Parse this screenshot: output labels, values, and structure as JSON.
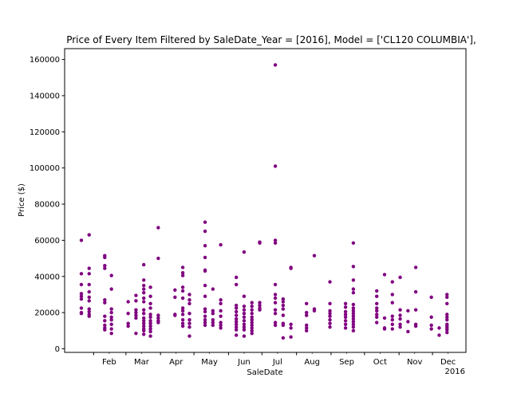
{
  "chart_data": {
    "type": "scatter",
    "title": "Price of Every Item Filtered by SaleDate_Year = [2016], Model = ['CL120 COLUMBIA'],",
    "xlabel": "SaleDate",
    "ylabel": "Price ($)",
    "x_tick_labels": [
      "Feb",
      "Mar",
      "Apr",
      "May",
      "Jun",
      "Jul",
      "Aug",
      "Sep",
      "Oct",
      "Nov",
      "Dec"
    ],
    "x_offset_label": "2016",
    "x_range": [
      "2016-01-06",
      "2016-12-31"
    ],
    "y_range": [
      -2000,
      166000
    ],
    "y_ticks": [
      0,
      20000,
      40000,
      60000,
      80000,
      100000,
      120000,
      140000,
      160000
    ],
    "y_tick_labels": [
      "0",
      "20000",
      "40000",
      "60000",
      "80000",
      "100000",
      "120000",
      "140000",
      "160000"
    ],
    "marker_color": "#800080",
    "grid": false,
    "points": [
      {
        "x": "2016-01-21",
        "y": 60000
      },
      {
        "x": "2016-01-21",
        "y": 41500
      },
      {
        "x": "2016-01-21",
        "y": 35500
      },
      {
        "x": "2016-01-21",
        "y": 30500
      },
      {
        "x": "2016-01-21",
        "y": 29000
      },
      {
        "x": "2016-01-21",
        "y": 27500
      },
      {
        "x": "2016-01-21",
        "y": 22500
      },
      {
        "x": "2016-01-21",
        "y": 20000
      },
      {
        "x": "2016-01-21",
        "y": 19500
      },
      {
        "x": "2016-01-28",
        "y": 63000
      },
      {
        "x": "2016-01-28",
        "y": 44500
      },
      {
        "x": "2016-01-28",
        "y": 41500
      },
      {
        "x": "2016-01-28",
        "y": 35500
      },
      {
        "x": "2016-01-28",
        "y": 31500
      },
      {
        "x": "2016-01-28",
        "y": 28500
      },
      {
        "x": "2016-01-28",
        "y": 26500
      },
      {
        "x": "2016-01-28",
        "y": 22000
      },
      {
        "x": "2016-01-28",
        "y": 20500
      },
      {
        "x": "2016-01-28",
        "y": 19000
      },
      {
        "x": "2016-01-28",
        "y": 18000
      },
      {
        "x": "2016-02-11",
        "y": 51500
      },
      {
        "x": "2016-02-11",
        "y": 50500
      },
      {
        "x": "2016-02-11",
        "y": 46000
      },
      {
        "x": "2016-02-11",
        "y": 44500
      },
      {
        "x": "2016-02-11",
        "y": 27000
      },
      {
        "x": "2016-02-11",
        "y": 25500
      },
      {
        "x": "2016-02-11",
        "y": 18000
      },
      {
        "x": "2016-02-11",
        "y": 15500
      },
      {
        "x": "2016-02-11",
        "y": 13000
      },
      {
        "x": "2016-02-11",
        "y": 11500
      },
      {
        "x": "2016-02-11",
        "y": 10500
      },
      {
        "x": "2016-02-17",
        "y": 40500
      },
      {
        "x": "2016-02-17",
        "y": 33000
      },
      {
        "x": "2016-02-17",
        "y": 22000
      },
      {
        "x": "2016-02-17",
        "y": 20000
      },
      {
        "x": "2016-02-17",
        "y": 17500
      },
      {
        "x": "2016-02-17",
        "y": 16000
      },
      {
        "x": "2016-02-17",
        "y": 13500
      },
      {
        "x": "2016-02-17",
        "y": 11000
      },
      {
        "x": "2016-02-17",
        "y": 8500
      },
      {
        "x": "2016-03-03",
        "y": 26000
      },
      {
        "x": "2016-03-03",
        "y": 19500
      },
      {
        "x": "2016-03-03",
        "y": 14000
      },
      {
        "x": "2016-03-03",
        "y": 12500
      },
      {
        "x": "2016-03-10",
        "y": 29500
      },
      {
        "x": "2016-03-10",
        "y": 26500
      },
      {
        "x": "2016-03-10",
        "y": 21500
      },
      {
        "x": "2016-03-10",
        "y": 20000
      },
      {
        "x": "2016-03-10",
        "y": 18500
      },
      {
        "x": "2016-03-10",
        "y": 17000
      },
      {
        "x": "2016-03-10",
        "y": 8500
      },
      {
        "x": "2016-03-17",
        "y": 46500
      },
      {
        "x": "2016-03-17",
        "y": 38000
      },
      {
        "x": "2016-03-17",
        "y": 35000
      },
      {
        "x": "2016-03-17",
        "y": 33000
      },
      {
        "x": "2016-03-17",
        "y": 31000
      },
      {
        "x": "2016-03-17",
        "y": 28000
      },
      {
        "x": "2016-03-17",
        "y": 26000
      },
      {
        "x": "2016-03-17",
        "y": 21500
      },
      {
        "x": "2016-03-17",
        "y": 19500
      },
      {
        "x": "2016-03-17",
        "y": 17000
      },
      {
        "x": "2016-03-17",
        "y": 15500
      },
      {
        "x": "2016-03-17",
        "y": 14000
      },
      {
        "x": "2016-03-17",
        "y": 12500
      },
      {
        "x": "2016-03-17",
        "y": 11000
      },
      {
        "x": "2016-03-17",
        "y": 10000
      },
      {
        "x": "2016-03-17",
        "y": 8000
      },
      {
        "x": "2016-03-23",
        "y": 34000
      },
      {
        "x": "2016-03-23",
        "y": 29000
      },
      {
        "x": "2016-03-23",
        "y": 25000
      },
      {
        "x": "2016-03-23",
        "y": 22500
      },
      {
        "x": "2016-03-23",
        "y": 19000
      },
      {
        "x": "2016-03-23",
        "y": 17500
      },
      {
        "x": "2016-03-23",
        "y": 15500
      },
      {
        "x": "2016-03-23",
        "y": 14000
      },
      {
        "x": "2016-03-23",
        "y": 12500
      },
      {
        "x": "2016-03-23",
        "y": 11000
      },
      {
        "x": "2016-03-23",
        "y": 9500
      },
      {
        "x": "2016-03-23",
        "y": 7000
      },
      {
        "x": "2016-03-30",
        "y": 67000
      },
      {
        "x": "2016-03-30",
        "y": 50000
      },
      {
        "x": "2016-03-30",
        "y": 18500
      },
      {
        "x": "2016-03-30",
        "y": 17000
      },
      {
        "x": "2016-03-30",
        "y": 15500
      },
      {
        "x": "2016-03-30",
        "y": 14500
      },
      {
        "x": "2016-04-14",
        "y": 32500
      },
      {
        "x": "2016-04-14",
        "y": 28500
      },
      {
        "x": "2016-04-14",
        "y": 19000
      },
      {
        "x": "2016-04-14",
        "y": 18500
      },
      {
        "x": "2016-04-21",
        "y": 45000
      },
      {
        "x": "2016-04-21",
        "y": 42000
      },
      {
        "x": "2016-04-21",
        "y": 40500
      },
      {
        "x": "2016-04-21",
        "y": 34000
      },
      {
        "x": "2016-04-21",
        "y": 32000
      },
      {
        "x": "2016-04-21",
        "y": 28000
      },
      {
        "x": "2016-04-21",
        "y": 22500
      },
      {
        "x": "2016-04-21",
        "y": 21000
      },
      {
        "x": "2016-04-21",
        "y": 19000
      },
      {
        "x": "2016-04-21",
        "y": 16000
      },
      {
        "x": "2016-04-21",
        "y": 14000
      },
      {
        "x": "2016-04-21",
        "y": 12500
      },
      {
        "x": "2016-04-27",
        "y": 30000
      },
      {
        "x": "2016-04-27",
        "y": 27000
      },
      {
        "x": "2016-04-27",
        "y": 25000
      },
      {
        "x": "2016-04-27",
        "y": 19500
      },
      {
        "x": "2016-04-27",
        "y": 16000
      },
      {
        "x": "2016-04-27",
        "y": 14000
      },
      {
        "x": "2016-04-27",
        "y": 12000
      },
      {
        "x": "2016-04-27",
        "y": 7000
      },
      {
        "x": "2016-05-11",
        "y": 70000
      },
      {
        "x": "2016-05-11",
        "y": 65000
      },
      {
        "x": "2016-05-11",
        "y": 57000
      },
      {
        "x": "2016-05-11",
        "y": 50500
      },
      {
        "x": "2016-05-11",
        "y": 43500
      },
      {
        "x": "2016-05-11",
        "y": 43000
      },
      {
        "x": "2016-05-11",
        "y": 35000
      },
      {
        "x": "2016-05-11",
        "y": 29000
      },
      {
        "x": "2016-05-11",
        "y": 22000
      },
      {
        "x": "2016-05-11",
        "y": 20500
      },
      {
        "x": "2016-05-11",
        "y": 18000
      },
      {
        "x": "2016-05-11",
        "y": 16000
      },
      {
        "x": "2016-05-11",
        "y": 14500
      },
      {
        "x": "2016-05-11",
        "y": 13000
      },
      {
        "x": "2016-05-18",
        "y": 33000
      },
      {
        "x": "2016-05-18",
        "y": 21000
      },
      {
        "x": "2016-05-18",
        "y": 19500
      },
      {
        "x": "2016-05-18",
        "y": 16000
      },
      {
        "x": "2016-05-18",
        "y": 14500
      },
      {
        "x": "2016-05-18",
        "y": 13000
      },
      {
        "x": "2016-05-25",
        "y": 57500
      },
      {
        "x": "2016-05-25",
        "y": 27000
      },
      {
        "x": "2016-05-25",
        "y": 25000
      },
      {
        "x": "2016-05-25",
        "y": 21000
      },
      {
        "x": "2016-05-25",
        "y": 18000
      },
      {
        "x": "2016-05-25",
        "y": 14500
      },
      {
        "x": "2016-05-25",
        "y": 13000
      },
      {
        "x": "2016-05-25",
        "y": 11500
      },
      {
        "x": "2016-06-08",
        "y": 39500
      },
      {
        "x": "2016-06-08",
        "y": 35500
      },
      {
        "x": "2016-06-08",
        "y": 24000
      },
      {
        "x": "2016-06-08",
        "y": 22500
      },
      {
        "x": "2016-06-08",
        "y": 20500
      },
      {
        "x": "2016-06-08",
        "y": 18500
      },
      {
        "x": "2016-06-08",
        "y": 16500
      },
      {
        "x": "2016-06-08",
        "y": 15000
      },
      {
        "x": "2016-06-08",
        "y": 13500
      },
      {
        "x": "2016-06-08",
        "y": 12000
      },
      {
        "x": "2016-06-08",
        "y": 10500
      },
      {
        "x": "2016-06-08",
        "y": 7500
      },
      {
        "x": "2016-06-15",
        "y": 53500
      },
      {
        "x": "2016-06-15",
        "y": 29000
      },
      {
        "x": "2016-06-15",
        "y": 23500
      },
      {
        "x": "2016-06-15",
        "y": 21500
      },
      {
        "x": "2016-06-15",
        "y": 19500
      },
      {
        "x": "2016-06-15",
        "y": 17500
      },
      {
        "x": "2016-06-15",
        "y": 15500
      },
      {
        "x": "2016-06-15",
        "y": 13500
      },
      {
        "x": "2016-06-15",
        "y": 12000
      },
      {
        "x": "2016-06-15",
        "y": 10500
      },
      {
        "x": "2016-06-15",
        "y": 7000
      },
      {
        "x": "2016-06-22",
        "y": 25500
      },
      {
        "x": "2016-06-22",
        "y": 23500
      },
      {
        "x": "2016-06-22",
        "y": 21500
      },
      {
        "x": "2016-06-22",
        "y": 19500
      },
      {
        "x": "2016-06-22",
        "y": 17500
      },
      {
        "x": "2016-06-22",
        "y": 16000
      },
      {
        "x": "2016-06-22",
        "y": 14500
      },
      {
        "x": "2016-06-22",
        "y": 13000
      },
      {
        "x": "2016-06-22",
        "y": 11500
      },
      {
        "x": "2016-06-22",
        "y": 10000
      },
      {
        "x": "2016-06-22",
        "y": 8500
      },
      {
        "x": "2016-06-29",
        "y": 59000
      },
      {
        "x": "2016-06-29",
        "y": 58500
      },
      {
        "x": "2016-06-29",
        "y": 25500
      },
      {
        "x": "2016-06-29",
        "y": 24000
      },
      {
        "x": "2016-06-29",
        "y": 22500
      },
      {
        "x": "2016-06-29",
        "y": 21500
      },
      {
        "x": "2016-07-13",
        "y": 157000
      },
      {
        "x": "2016-07-13",
        "y": 101000
      },
      {
        "x": "2016-07-13",
        "y": 60000
      },
      {
        "x": "2016-07-13",
        "y": 58500
      },
      {
        "x": "2016-07-13",
        "y": 35500
      },
      {
        "x": "2016-07-13",
        "y": 30000
      },
      {
        "x": "2016-07-13",
        "y": 28000
      },
      {
        "x": "2016-07-13",
        "y": 25500
      },
      {
        "x": "2016-07-13",
        "y": 21500
      },
      {
        "x": "2016-07-13",
        "y": 19500
      },
      {
        "x": "2016-07-13",
        "y": 14500
      },
      {
        "x": "2016-07-13",
        "y": 13000
      },
      {
        "x": "2016-07-20",
        "y": 27500
      },
      {
        "x": "2016-07-20",
        "y": 26000
      },
      {
        "x": "2016-07-20",
        "y": 24000
      },
      {
        "x": "2016-07-20",
        "y": 22000
      },
      {
        "x": "2016-07-20",
        "y": 18500
      },
      {
        "x": "2016-07-20",
        "y": 14000
      },
      {
        "x": "2016-07-20",
        "y": 13000
      },
      {
        "x": "2016-07-20",
        "y": 6000
      },
      {
        "x": "2016-07-27",
        "y": 45000
      },
      {
        "x": "2016-07-27",
        "y": 44500
      },
      {
        "x": "2016-07-27",
        "y": 13500
      },
      {
        "x": "2016-07-27",
        "y": 11500
      },
      {
        "x": "2016-07-27",
        "y": 6500
      },
      {
        "x": "2016-08-10",
        "y": 25000
      },
      {
        "x": "2016-08-10",
        "y": 20000
      },
      {
        "x": "2016-08-10",
        "y": 18500
      },
      {
        "x": "2016-08-10",
        "y": 13000
      },
      {
        "x": "2016-08-10",
        "y": 11500
      },
      {
        "x": "2016-08-10",
        "y": 10000
      },
      {
        "x": "2016-08-17",
        "y": 51500
      },
      {
        "x": "2016-08-17",
        "y": 22000
      },
      {
        "x": "2016-08-17",
        "y": 21000
      },
      {
        "x": "2016-08-31",
        "y": 37000
      },
      {
        "x": "2016-08-31",
        "y": 25000
      },
      {
        "x": "2016-08-31",
        "y": 21000
      },
      {
        "x": "2016-08-31",
        "y": 19500
      },
      {
        "x": "2016-08-31",
        "y": 18000
      },
      {
        "x": "2016-08-31",
        "y": 16000
      },
      {
        "x": "2016-08-31",
        "y": 14000
      },
      {
        "x": "2016-08-31",
        "y": 12000
      },
      {
        "x": "2016-09-14",
        "y": 25000
      },
      {
        "x": "2016-09-14",
        "y": 23000
      },
      {
        "x": "2016-09-14",
        "y": 20500
      },
      {
        "x": "2016-09-14",
        "y": 19000
      },
      {
        "x": "2016-09-14",
        "y": 17500
      },
      {
        "x": "2016-09-14",
        "y": 15500
      },
      {
        "x": "2016-09-14",
        "y": 13500
      },
      {
        "x": "2016-09-14",
        "y": 11500
      },
      {
        "x": "2016-09-21",
        "y": 58500
      },
      {
        "x": "2016-09-21",
        "y": 45500
      },
      {
        "x": "2016-09-21",
        "y": 38000
      },
      {
        "x": "2016-09-21",
        "y": 33000
      },
      {
        "x": "2016-09-21",
        "y": 31000
      },
      {
        "x": "2016-09-21",
        "y": 24500
      },
      {
        "x": "2016-09-21",
        "y": 22500
      },
      {
        "x": "2016-09-21",
        "y": 21000
      },
      {
        "x": "2016-09-21",
        "y": 19500
      },
      {
        "x": "2016-09-21",
        "y": 18000
      },
      {
        "x": "2016-09-21",
        "y": 16500
      },
      {
        "x": "2016-09-21",
        "y": 15000
      },
      {
        "x": "2016-09-21",
        "y": 13500
      },
      {
        "x": "2016-09-21",
        "y": 12000
      },
      {
        "x": "2016-09-21",
        "y": 10000
      },
      {
        "x": "2016-10-12",
        "y": 32000
      },
      {
        "x": "2016-10-12",
        "y": 29000
      },
      {
        "x": "2016-10-12",
        "y": 25000
      },
      {
        "x": "2016-10-12",
        "y": 22500
      },
      {
        "x": "2016-10-12",
        "y": 21000
      },
      {
        "x": "2016-10-12",
        "y": 19000
      },
      {
        "x": "2016-10-12",
        "y": 17500
      },
      {
        "x": "2016-10-12",
        "y": 14500
      },
      {
        "x": "2016-10-19",
        "y": 41000
      },
      {
        "x": "2016-10-19",
        "y": 17000
      },
      {
        "x": "2016-10-19",
        "y": 11500
      },
      {
        "x": "2016-10-19",
        "y": 11000
      },
      {
        "x": "2016-10-26",
        "y": 37000
      },
      {
        "x": "2016-10-26",
        "y": 30000
      },
      {
        "x": "2016-10-26",
        "y": 25500
      },
      {
        "x": "2016-10-26",
        "y": 18000
      },
      {
        "x": "2016-10-26",
        "y": 16000
      },
      {
        "x": "2016-10-26",
        "y": 13500
      },
      {
        "x": "2016-10-26",
        "y": 11000
      },
      {
        "x": "2016-11-02",
        "y": 39500
      },
      {
        "x": "2016-11-02",
        "y": 21500
      },
      {
        "x": "2016-11-02",
        "y": 18500
      },
      {
        "x": "2016-11-02",
        "y": 16500
      },
      {
        "x": "2016-11-02",
        "y": 13500
      },
      {
        "x": "2016-11-02",
        "y": 12000
      },
      {
        "x": "2016-11-09",
        "y": 21000
      },
      {
        "x": "2016-11-09",
        "y": 15000
      },
      {
        "x": "2016-11-09",
        "y": 9500
      },
      {
        "x": "2016-11-16",
        "y": 45000
      },
      {
        "x": "2016-11-16",
        "y": 31500
      },
      {
        "x": "2016-11-16",
        "y": 21500
      },
      {
        "x": "2016-11-16",
        "y": 13500
      },
      {
        "x": "2016-11-16",
        "y": 12500
      },
      {
        "x": "2016-11-30",
        "y": 28500
      },
      {
        "x": "2016-11-30",
        "y": 17500
      },
      {
        "x": "2016-11-30",
        "y": 13000
      },
      {
        "x": "2016-11-30",
        "y": 11000
      },
      {
        "x": "2016-12-07",
        "y": 11500
      },
      {
        "x": "2016-12-07",
        "y": 7500
      },
      {
        "x": "2016-12-14",
        "y": 30000
      },
      {
        "x": "2016-12-14",
        "y": 28500
      },
      {
        "x": "2016-12-14",
        "y": 25000
      },
      {
        "x": "2016-12-14",
        "y": 19000
      },
      {
        "x": "2016-12-14",
        "y": 17500
      },
      {
        "x": "2016-12-14",
        "y": 16000
      },
      {
        "x": "2016-12-14",
        "y": 13500
      },
      {
        "x": "2016-12-14",
        "y": 12500
      },
      {
        "x": "2016-12-14",
        "y": 11500
      },
      {
        "x": "2016-12-14",
        "y": 10500
      },
      {
        "x": "2016-12-14",
        "y": 9000
      }
    ]
  }
}
